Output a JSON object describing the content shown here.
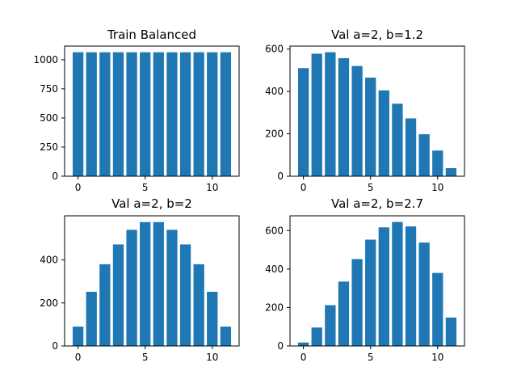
{
  "figure": {
    "colors": {
      "bar": "#1f77b4",
      "axes": "#000000",
      "background": "#ffffff"
    }
  },
  "chart_data": [
    {
      "type": "bar",
      "title": "Train Balanced",
      "xlabel": "",
      "ylabel": "",
      "x": [
        0,
        1,
        2,
        3,
        4,
        5,
        6,
        7,
        8,
        9,
        10,
        11
      ],
      "values": [
        1064,
        1064,
        1064,
        1064,
        1064,
        1064,
        1064,
        1064,
        1064,
        1064,
        1064,
        1064
      ],
      "xlim": [
        -1.0,
        12.0
      ],
      "ylim": [
        0,
        1117
      ],
      "xticks": [
        0,
        5,
        10
      ],
      "yticks": [
        0,
        250,
        500,
        750,
        1000
      ],
      "grid": false,
      "legend": "none"
    },
    {
      "type": "bar",
      "title": "Val a=2, b=1.2",
      "xlabel": "",
      "ylabel": "",
      "x": [
        0,
        1,
        2,
        3,
        4,
        5,
        6,
        7,
        8,
        9,
        10,
        11
      ],
      "values": [
        510,
        578,
        585,
        557,
        520,
        465,
        405,
        342,
        273,
        198,
        121,
        38
      ],
      "xlim": [
        -1.0,
        12.0
      ],
      "ylim": [
        0,
        614
      ],
      "xticks": [
        0,
        5,
        10
      ],
      "yticks": [
        0,
        200,
        400,
        600
      ],
      "grid": false,
      "legend": "none"
    },
    {
      "type": "bar",
      "title": "Val a=2, b=2",
      "xlabel": "",
      "ylabel": "",
      "x": [
        0,
        1,
        2,
        3,
        4,
        5,
        6,
        7,
        8,
        9,
        10,
        11
      ],
      "values": [
        90,
        252,
        380,
        472,
        540,
        576,
        576,
        540,
        472,
        380,
        252,
        90
      ],
      "xlim": [
        -1.0,
        12.0
      ],
      "ylim": [
        0,
        605
      ],
      "xticks": [
        0,
        5,
        10
      ],
      "yticks": [
        0,
        200,
        400
      ],
      "grid": false,
      "legend": "none"
    },
    {
      "type": "bar",
      "title": "Val a=2, b=2.7",
      "xlabel": "",
      "ylabel": "",
      "x": [
        0,
        1,
        2,
        3,
        4,
        5,
        6,
        7,
        8,
        9,
        10,
        11
      ],
      "values": [
        18,
        96,
        212,
        335,
        452,
        553,
        617,
        645,
        622,
        538,
        380,
        148
      ],
      "xlim": [
        -1.0,
        12.0
      ],
      "ylim": [
        0,
        677
      ],
      "xticks": [
        0,
        5,
        10
      ],
      "yticks": [
        0,
        200,
        400,
        600
      ],
      "grid": false,
      "legend": "none"
    }
  ]
}
